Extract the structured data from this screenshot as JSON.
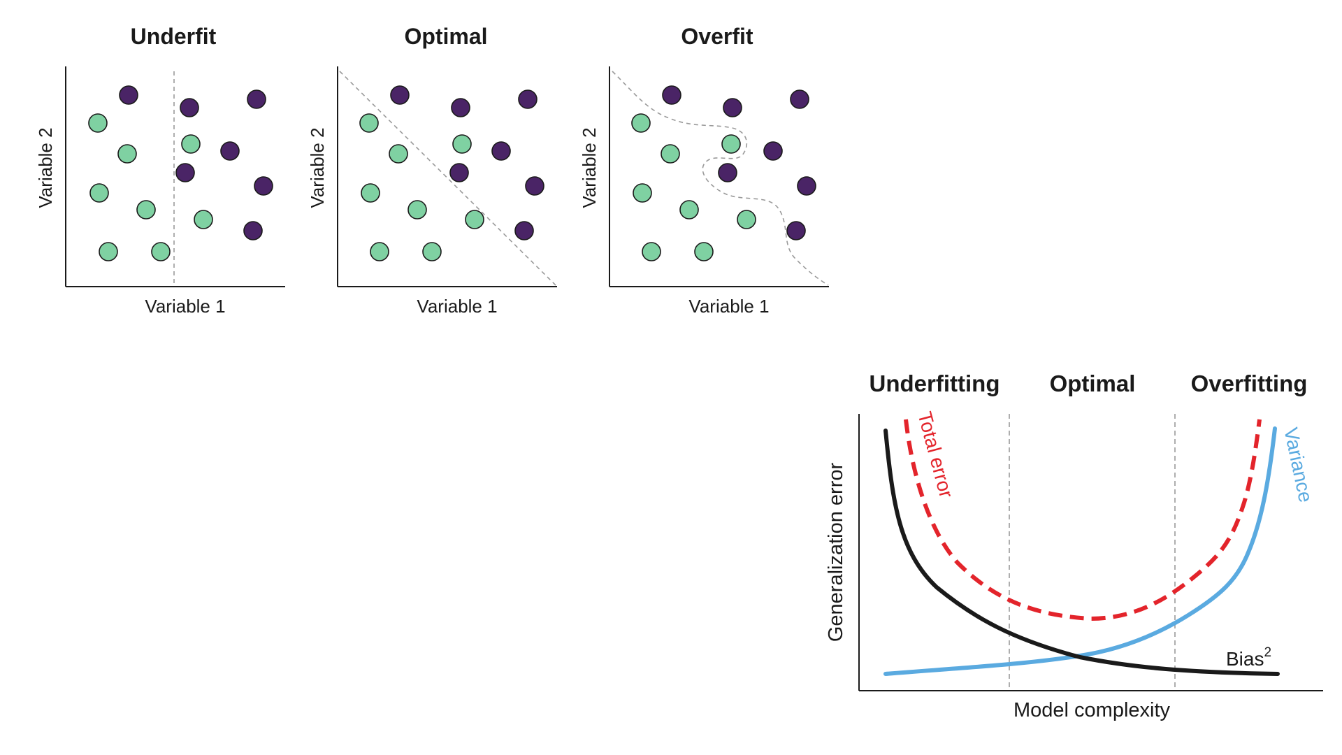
{
  "scatter_panels": [
    {
      "title": "Underfit",
      "xlabel": "Variable 1",
      "ylabel": "Variable 2"
    },
    {
      "title": "Optimal",
      "xlabel": "Variable 1",
      "ylabel": "Variable 2"
    },
    {
      "title": "Overfit",
      "xlabel": "Variable 1",
      "ylabel": "Variable 2"
    }
  ],
  "colors": {
    "class_a": "#7fd1a2",
    "class_b": "#4a2466",
    "total_error": "#e3242b",
    "variance": "#5aaae0",
    "bias": "#1a1a1a",
    "boundary": "#9a9a9a"
  },
  "tradeoff": {
    "regions": [
      "Underfitting",
      "Optimal",
      "Overfitting"
    ],
    "xlabel": "Model complexity",
    "ylabel": "Generalization error",
    "curve_labels": {
      "total_error": "Total error",
      "variance": "Variance",
      "bias": "Bias",
      "bias_sup": "2"
    }
  }
}
